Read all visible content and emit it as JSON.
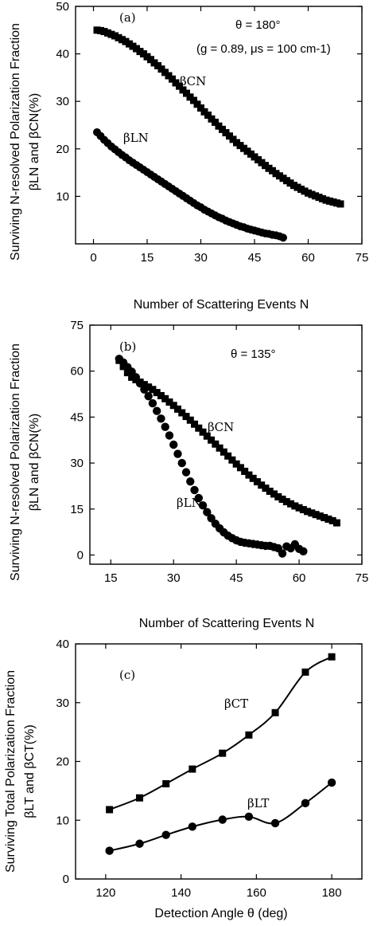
{
  "chart_data": [
    {
      "type": "scatter",
      "panel_label": "(a)",
      "annotations": [
        "θ = 180°",
        "(g = 0.89, μs = 100 cm-1)"
      ],
      "xlabel": "Number of Scattering Events N",
      "ylabel_line1": "Surviving N-resolved Polarization Fraction",
      "ylabel_line2": "βLN and βCN(%)",
      "xlim": [
        -5,
        75
      ],
      "ylim": [
        0,
        50
      ],
      "xticks": [
        "0",
        "15",
        "30",
        "45",
        "60",
        "75"
      ],
      "yticks": [
        "10",
        "20",
        "30",
        "40",
        "50"
      ],
      "grid": false,
      "series": [
        {
          "name": "βCN",
          "marker": "square",
          "x": [
            1,
            2,
            3,
            4,
            5,
            6,
            7,
            8,
            9,
            10,
            11,
            12,
            13,
            14,
            15,
            16,
            17,
            18,
            19,
            20,
            21,
            22,
            23,
            24,
            25,
            26,
            27,
            28,
            29,
            30,
            31,
            32,
            33,
            34,
            35,
            36,
            37,
            38,
            39,
            40,
            41,
            42,
            43,
            44,
            45,
            46,
            47,
            48,
            49,
            50,
            51,
            52,
            53,
            54,
            55,
            56,
            57,
            58,
            59,
            60,
            61,
            62,
            63,
            64,
            65,
            66,
            67,
            68,
            69
          ],
          "y": [
            45.0,
            44.9,
            44.7,
            44.4,
            44.1,
            43.8,
            43.4,
            43.0,
            42.6,
            42.1,
            41.6,
            41.1,
            40.5,
            40.0,
            39.4,
            38.8,
            38.1,
            37.5,
            36.8,
            36.1,
            35.4,
            34.7,
            33.9,
            33.2,
            32.4,
            31.7,
            30.9,
            30.2,
            29.4,
            28.6,
            27.8,
            27.1,
            26.3,
            25.6,
            24.8,
            24.1,
            23.4,
            22.7,
            22.0,
            21.3,
            20.7,
            20.1,
            19.5,
            18.9,
            18.3,
            17.7,
            17.1,
            16.5,
            15.9,
            15.4,
            14.8,
            14.3,
            13.8,
            13.3,
            12.8,
            12.3,
            11.9,
            11.5,
            11.1,
            10.7,
            10.4,
            10.1,
            9.8,
            9.5,
            9.2,
            9.0,
            8.8,
            8.6,
            8.4
          ]
        },
        {
          "name": "βLN",
          "marker": "circle",
          "x": [
            1,
            2,
            3,
            4,
            5,
            6,
            7,
            8,
            9,
            10,
            11,
            12,
            13,
            14,
            15,
            16,
            17,
            18,
            19,
            20,
            21,
            22,
            23,
            24,
            25,
            26,
            27,
            28,
            29,
            30,
            31,
            32,
            33,
            34,
            35,
            36,
            37,
            38,
            39,
            40,
            41,
            42,
            43,
            44,
            45,
            46,
            47,
            48,
            49,
            50,
            51,
            52,
            53
          ],
          "y": [
            23.5,
            22.7,
            21.9,
            21.2,
            20.5,
            19.9,
            19.3,
            18.7,
            18.2,
            17.6,
            17.1,
            16.6,
            16.1,
            15.6,
            15.1,
            14.6,
            14.1,
            13.6,
            13.1,
            12.6,
            12.1,
            11.6,
            11.1,
            10.6,
            10.1,
            9.6,
            9.1,
            8.6,
            8.1,
            7.7,
            7.2,
            6.8,
            6.4,
            6.0,
            5.6,
            5.3,
            4.9,
            4.6,
            4.3,
            4.0,
            3.7,
            3.5,
            3.2,
            3.0,
            2.8,
            2.6,
            2.4,
            2.2,
            2.1,
            1.9,
            1.8,
            1.6,
            1.3
          ]
        }
      ],
      "series_labels": [
        "βCN",
        "βLN"
      ]
    },
    {
      "type": "scatter",
      "panel_label": "(b)",
      "annotations": [
        "θ = 135°"
      ],
      "xlabel": "Number of Scattering Events N",
      "ylabel_line1": "Surviving N-resolved Polarization Fraction",
      "ylabel_line2": "βLN and βCN(%)",
      "xlim": [
        10,
        75
      ],
      "ylim": [
        -3,
        75
      ],
      "xticks": [
        "15",
        "30",
        "45",
        "60",
        "75"
      ],
      "yticks": [
        "0",
        "15",
        "30",
        "45",
        "60",
        "75"
      ],
      "grid": false,
      "series": [
        {
          "name": "βCN",
          "marker": "square",
          "x": [
            17,
            18,
            19,
            20,
            21,
            22,
            23,
            24,
            25,
            26,
            27,
            28,
            29,
            30,
            31,
            32,
            33,
            34,
            35,
            36,
            37,
            38,
            39,
            40,
            41,
            42,
            43,
            44,
            45,
            46,
            47,
            48,
            49,
            50,
            51,
            52,
            53,
            54,
            55,
            56,
            57,
            58,
            59,
            60,
            61,
            62,
            63,
            64,
            65,
            66,
            67,
            68,
            69
          ],
          "y": [
            63.5,
            61.5,
            59.5,
            58.0,
            57.2,
            56.4,
            55.6,
            54.8,
            54.0,
            53.0,
            52.0,
            51.0,
            49.9,
            48.8,
            47.6,
            46.4,
            45.2,
            44.0,
            42.7,
            41.4,
            40.1,
            38.8,
            37.5,
            36.2,
            34.9,
            33.6,
            32.3,
            31.0,
            29.7,
            28.5,
            27.3,
            26.1,
            25.0,
            23.9,
            22.8,
            21.8,
            20.8,
            19.9,
            19.0,
            18.2,
            17.4,
            16.7,
            16.0,
            15.4,
            14.8,
            14.2,
            13.7,
            13.2,
            12.7,
            12.2,
            11.7,
            11.2,
            10.5
          ]
        },
        {
          "name": "βLN",
          "marker": "circle",
          "x": [
            17,
            18,
            19,
            20,
            21,
            22,
            23,
            24,
            25,
            26,
            27,
            28,
            29,
            30,
            31,
            32,
            33,
            34,
            35,
            36,
            37,
            38,
            39,
            40,
            41,
            42,
            43,
            44,
            45,
            46,
            47,
            48,
            49,
            50,
            51,
            52,
            53,
            54,
            55,
            56,
            57,
            58,
            59,
            60,
            61
          ],
          "y": [
            64.0,
            62.8,
            61.3,
            59.8,
            58.0,
            56.0,
            54.0,
            51.8,
            49.5,
            47.0,
            44.5,
            41.8,
            39.0,
            36.0,
            33.0,
            30.0,
            27.0,
            24.0,
            21.2,
            18.6,
            16.2,
            14.0,
            12.0,
            10.2,
            8.7,
            7.4,
            6.3,
            5.5,
            4.8,
            4.3,
            4.0,
            3.8,
            3.6,
            3.4,
            3.2,
            3.0,
            3.0,
            2.6,
            2.2,
            0.5,
            2.8,
            2.2,
            3.5,
            2.0,
            1.2
          ]
        }
      ],
      "series_labels": [
        "βCN",
        "βLN"
      ]
    },
    {
      "type": "line",
      "panel_label": "(c)",
      "xlabel": "Detection Angle θ   (deg)",
      "ylabel_line1": "Surviving Total Polarization Fraction",
      "ylabel_line2": "βLT and βCT(%)",
      "xlim": [
        112,
        188
      ],
      "ylim": [
        0,
        40
      ],
      "xticks": [
        "120",
        "140",
        "160",
        "180"
      ],
      "yticks": [
        "0",
        "10",
        "20",
        "30",
        "40"
      ],
      "grid": false,
      "series": [
        {
          "name": "βCT",
          "marker": "square",
          "x": [
            121,
            129,
            136,
            143,
            151,
            158,
            165,
            173,
            180
          ],
          "y": [
            11.8,
            13.8,
            16.2,
            18.7,
            21.4,
            24.5,
            28.3,
            35.2,
            37.8
          ]
        },
        {
          "name": "βLT",
          "marker": "circle",
          "x": [
            121,
            129,
            136,
            143,
            151,
            158,
            165,
            173,
            180
          ],
          "y": [
            4.8,
            6.0,
            7.5,
            8.9,
            10.1,
            10.6,
            9.5,
            12.9,
            16.4
          ]
        }
      ],
      "series_labels": [
        "βCT",
        "βLT"
      ]
    }
  ]
}
